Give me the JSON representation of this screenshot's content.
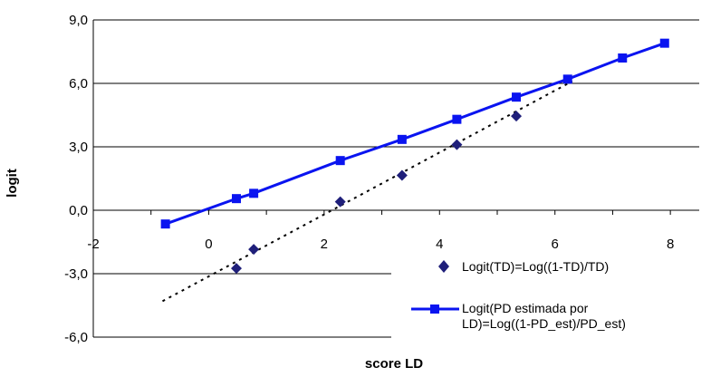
{
  "chart_data": {
    "type": "scatter",
    "xlabel": "score LD",
    "ylabel": "logit",
    "xlim": [
      -2,
      8.5
    ],
    "ylim": [
      -6,
      9
    ],
    "x_ticks": [
      "-2",
      "0",
      "2",
      "4",
      "6",
      "8"
    ],
    "y_ticks": [
      "9,0",
      "6,0",
      "3,0",
      "0,0",
      "-3,0",
      "-6,0"
    ],
    "grid": "horizontal",
    "legend_position": "bottom-right",
    "series": [
      {
        "name": "Logit(TD)=Log((1-TD)/TD)",
        "marker": "diamond",
        "color": "#1f1f7a",
        "x": [
          0.48,
          0.78,
          2.28,
          3.35,
          4.3,
          5.33
        ],
        "y": [
          -2.75,
          -1.85,
          0.4,
          1.65,
          3.1,
          4.45
        ]
      },
      {
        "name": "Logit(PD estimada por LD)=Log((1-PD_est)/PD_est)",
        "marker": "square",
        "line": "solid",
        "color": "#0a14f0",
        "x": [
          -0.75,
          0.48,
          0.78,
          2.28,
          3.35,
          4.3,
          5.33,
          6.22,
          7.17,
          7.9
        ],
        "y": [
          -0.65,
          0.55,
          0.8,
          2.35,
          3.35,
          4.3,
          5.35,
          6.2,
          7.2,
          7.9
        ]
      }
    ],
    "trendline": {
      "style": "dotted",
      "color": "#000000",
      "x": [
        -0.8,
        6.3
      ],
      "y": [
        -4.3,
        6.1
      ]
    },
    "legend": {
      "entry1": "Logit(TD)=Log((1-TD)/TD)",
      "entry2_line1": "Logit(PD estimada por",
      "entry2_line2": "LD)=Log((1-PD_est)/PD_est)"
    }
  }
}
